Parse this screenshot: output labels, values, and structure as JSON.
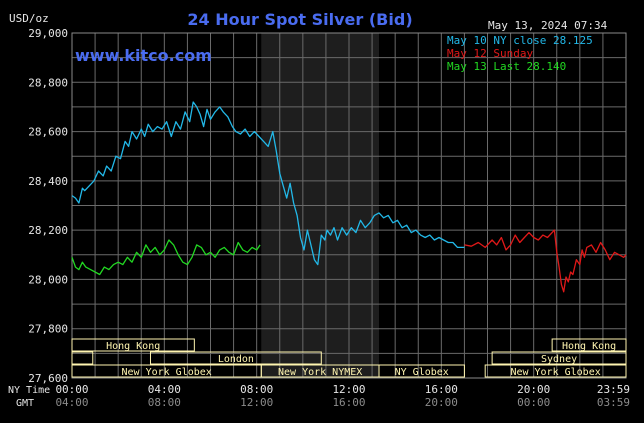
{
  "chart_data": {
    "type": "line",
    "title": "24 Hour Spot Silver (Bid)",
    "timestamp": "May 13, 2024 07:34",
    "unit_label": "USD/oz",
    "watermark": "www.kitco.com",
    "ylim": [
      27600,
      29000
    ],
    "y_ticks": [
      "29,000",
      "28,800",
      "28,600",
      "28,400",
      "28,200",
      "28,000",
      "27,800",
      "27,600"
    ],
    "y_tick_values": [
      29000,
      28800,
      28600,
      28400,
      28200,
      28000,
      27800,
      27600
    ],
    "xlim": [
      0,
      24
    ],
    "x_ticks_ny": [
      "00:00",
      "04:00",
      "08:00",
      "12:00",
      "16:00",
      "20:00",
      "23:59"
    ],
    "x_ticks_gmt": [
      "04:00",
      "08:00",
      "12:00",
      "16:00",
      "20:00",
      "00:00",
      "03:59"
    ],
    "x_tick_hours": [
      0,
      4,
      8,
      12,
      16,
      20,
      23.98
    ],
    "axis_row_labels": {
      "ny": "NY Time",
      "gmt": "GMT"
    },
    "shaded_region_hours": [
      8.2,
      13.3
    ],
    "colors": {
      "background": "#000000",
      "grid": "#6a6a6a",
      "title": "#4a6cf0",
      "shade": "#1e1e1e",
      "session_fill": "#fff5b0",
      "may10": "#22b8e8",
      "may12": "#e01818",
      "may13": "#22d822"
    },
    "legend": [
      {
        "text": "May 10 NY close 28.125",
        "color": "#22b8e8"
      },
      {
        "text": "May 12 Sunday",
        "color": "#e01818"
      },
      {
        "text": "May 13 Last 28.140",
        "color": "#22d822"
      }
    ],
    "sessions": [
      {
        "label": "Hong Kong",
        "row": 0,
        "start": 0,
        "end": 5.3
      },
      {
        "label": "London",
        "row": 1,
        "start": 3.4,
        "end": 10.8
      },
      {
        "label": "New York Globex",
        "row": 2,
        "start": 0,
        "end": 8.2
      },
      {
        "label": "New York NYMEX",
        "row": 2,
        "start": 8.2,
        "end": 13.3
      },
      {
        "label": "NY Globex",
        "row": 2,
        "start": 13.3,
        "end": 17.0
      },
      {
        "label": "Hong Kong",
        "row": 0,
        "start": 20.8,
        "end": 24
      },
      {
        "label": "Sydney",
        "row": 1,
        "start": 18.2,
        "end": 24
      },
      {
        "label": "New York Globex",
        "row": 2,
        "start": 17.9,
        "end": 24
      }
    ],
    "session_stubs": [
      {
        "row": 1,
        "start": 0,
        "end": 0.9
      }
    ],
    "series": [
      {
        "name": "May 10 NY close 28.125",
        "color": "#22b8e8",
        "x": [
          0,
          0.15,
          0.3,
          0.45,
          0.55,
          0.75,
          0.95,
          1.15,
          1.35,
          1.5,
          1.7,
          1.9,
          2.1,
          2.3,
          2.45,
          2.6,
          2.8,
          3.0,
          3.15,
          3.3,
          3.5,
          3.7,
          3.9,
          4.1,
          4.3,
          4.5,
          4.7,
          4.9,
          5.1,
          5.25,
          5.4,
          5.55,
          5.7,
          5.85,
          6.0,
          6.2,
          6.4,
          6.55,
          6.75,
          6.95,
          7.1,
          7.3,
          7.5,
          7.7,
          7.9,
          8.1,
          8.3,
          8.5,
          8.7,
          8.85,
          9.0,
          9.15,
          9.3,
          9.45,
          9.6,
          9.75,
          9.9,
          10.05,
          10.2,
          10.35,
          10.5,
          10.65,
          10.8,
          10.95,
          11.05,
          11.2,
          11.35,
          11.5,
          11.7,
          11.9,
          12.1,
          12.3,
          12.5,
          12.7,
          12.9,
          13.1,
          13.3,
          13.5,
          13.7,
          13.9,
          14.1,
          14.3,
          14.5,
          14.7,
          14.9,
          15.1,
          15.3,
          15.5,
          15.7,
          15.9,
          16.1,
          16.3,
          16.5,
          16.7,
          16.9,
          17.0
        ],
        "y": [
          28340,
          28330,
          28310,
          28370,
          28360,
          28380,
          28400,
          28440,
          28420,
          28460,
          28440,
          28500,
          28490,
          28560,
          28540,
          28600,
          28570,
          28610,
          28580,
          28630,
          28600,
          28620,
          28610,
          28640,
          28580,
          28640,
          28610,
          28680,
          28640,
          28720,
          28700,
          28670,
          28620,
          28690,
          28650,
          28680,
          28700,
          28680,
          28660,
          28620,
          28600,
          28590,
          28610,
          28580,
          28600,
          28580,
          28560,
          28540,
          28600,
          28520,
          28430,
          28380,
          28330,
          28390,
          28310,
          28260,
          28170,
          28120,
          28200,
          28140,
          28080,
          28060,
          28180,
          28160,
          28200,
          28180,
          28210,
          28160,
          28210,
          28180,
          28210,
          28190,
          28240,
          28210,
          28230,
          28260,
          28270,
          28250,
          28260,
          28230,
          28240,
          28210,
          28220,
          28190,
          28200,
          28180,
          28170,
          28180,
          28160,
          28170,
          28160,
          28150,
          28150,
          28130,
          28130,
          28130
        ]
      },
      {
        "name": "May 12 Sunday",
        "color": "#e01818",
        "x": [
          17.0,
          17.3,
          17.6,
          17.9,
          18.2,
          18.4,
          18.6,
          18.8,
          19.0,
          19.2,
          19.4,
          19.6,
          19.8,
          20.0,
          20.2,
          20.4,
          20.6,
          20.8,
          20.9,
          21.0,
          21.1,
          21.2,
          21.3,
          21.4,
          21.5,
          21.6,
          21.7,
          21.85,
          22.0,
          22.1,
          22.2,
          22.3,
          22.5,
          22.7,
          22.9,
          23.1,
          23.3,
          23.5,
          23.7,
          23.9,
          24.0
        ],
        "y": [
          28140,
          28135,
          28150,
          28130,
          28160,
          28140,
          28170,
          28120,
          28140,
          28180,
          28150,
          28170,
          28190,
          28170,
          28160,
          28180,
          28170,
          28190,
          28200,
          28110,
          28050,
          27980,
          27950,
          28010,
          27990,
          28030,
          28020,
          28080,
          28060,
          28120,
          28090,
          28130,
          28140,
          28110,
          28150,
          28120,
          28080,
          28110,
          28100,
          28090,
          28100
        ]
      },
      {
        "name": "May 13 Last 28.140",
        "color": "#22d822",
        "x": [
          0,
          0.15,
          0.3,
          0.45,
          0.6,
          0.8,
          1.0,
          1.2,
          1.4,
          1.6,
          1.8,
          2.0,
          2.2,
          2.4,
          2.6,
          2.8,
          3.0,
          3.2,
          3.4,
          3.6,
          3.8,
          4.0,
          4.2,
          4.4,
          4.6,
          4.8,
          5.0,
          5.2,
          5.4,
          5.6,
          5.8,
          6.0,
          6.2,
          6.4,
          6.6,
          6.8,
          7.0,
          7.2,
          7.4,
          7.6,
          7.8,
          8.0,
          8.15
        ],
        "y": [
          28090,
          28050,
          28040,
          28070,
          28050,
          28040,
          28030,
          28020,
          28050,
          28040,
          28060,
          28070,
          28060,
          28090,
          28070,
          28110,
          28090,
          28140,
          28110,
          28130,
          28100,
          28120,
          28160,
          28140,
          28100,
          28070,
          28060,
          28090,
          28140,
          28130,
          28100,
          28110,
          28090,
          28120,
          28130,
          28110,
          28100,
          28150,
          28120,
          28110,
          28130,
          28120,
          28140
        ]
      }
    ]
  }
}
